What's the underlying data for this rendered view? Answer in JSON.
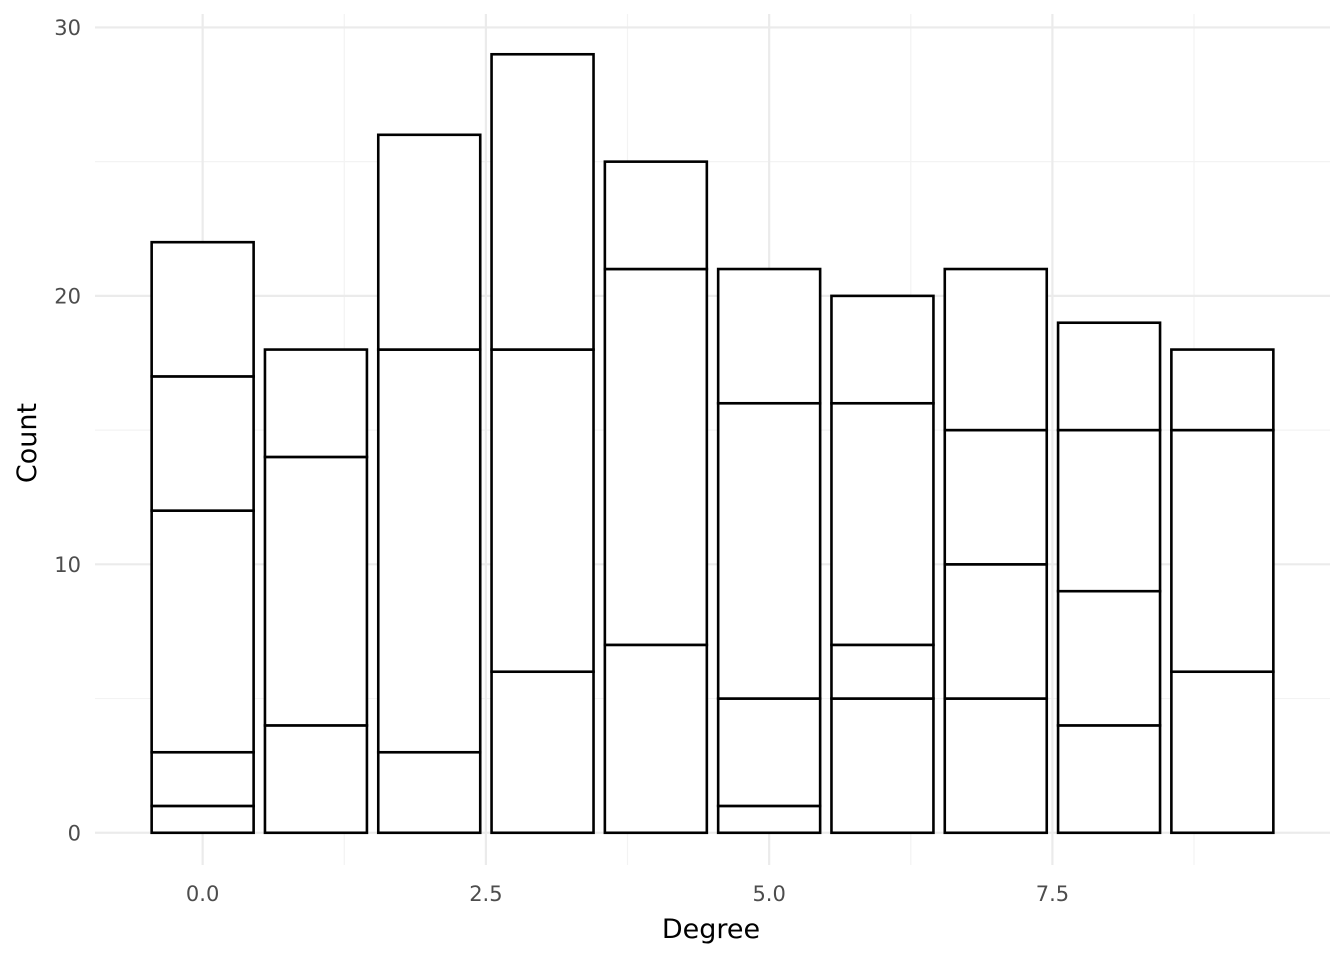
{
  "chart_data": {
    "type": "bar",
    "stacked": true,
    "title": "",
    "xlabel": "Degree",
    "ylabel": "Count",
    "xlim": [
      -0.95,
      9.95
    ],
    "ylim": [
      -1.2,
      30.5
    ],
    "x_ticks": [
      {
        "value": 0,
        "label": "0.0"
      },
      {
        "value": 2.5,
        "label": "2.5"
      },
      {
        "value": 5,
        "label": "5.0"
      },
      {
        "value": 7.5,
        "label": "7.5"
      }
    ],
    "y_ticks": [
      {
        "value": 0,
        "label": "0"
      },
      {
        "value": 10,
        "label": "10"
      },
      {
        "value": 20,
        "label": "20"
      },
      {
        "value": 30,
        "label": "30"
      }
    ],
    "grid": true,
    "legend": "none",
    "bar_width": 0.9,
    "bars": [
      {
        "x": 0,
        "total": 22,
        "segment_boundaries": [
          0,
          1,
          3,
          12,
          17,
          22
        ]
      },
      {
        "x": 1,
        "total": 18,
        "segment_boundaries": [
          0,
          4,
          14,
          18
        ]
      },
      {
        "x": 2,
        "total": 26,
        "segment_boundaries": [
          0,
          3,
          18,
          26
        ]
      },
      {
        "x": 3,
        "total": 29,
        "segment_boundaries": [
          0,
          6,
          18,
          29
        ]
      },
      {
        "x": 4,
        "total": 25,
        "segment_boundaries": [
          0,
          7,
          21,
          25
        ]
      },
      {
        "x": 5,
        "total": 21,
        "segment_boundaries": [
          0,
          1,
          5,
          16,
          21
        ]
      },
      {
        "x": 6,
        "total": 20,
        "segment_boundaries": [
          0,
          5,
          7,
          16,
          20
        ]
      },
      {
        "x": 7,
        "total": 21,
        "segment_boundaries": [
          0,
          5,
          10,
          15,
          21
        ]
      },
      {
        "x": 8,
        "total": 19,
        "segment_boundaries": [
          0,
          4,
          9,
          15,
          19
        ]
      },
      {
        "x": 9,
        "total": 18,
        "segment_boundaries": [
          0,
          6,
          15,
          18
        ]
      }
    ],
    "colors": {
      "bar_fill": "#ffffff",
      "bar_stroke": "#000000",
      "grid_major": "#ebebeb",
      "grid_minor": "#f3f3f3",
      "tick_text": "#4d4d4d",
      "title_text": "#000000"
    }
  }
}
